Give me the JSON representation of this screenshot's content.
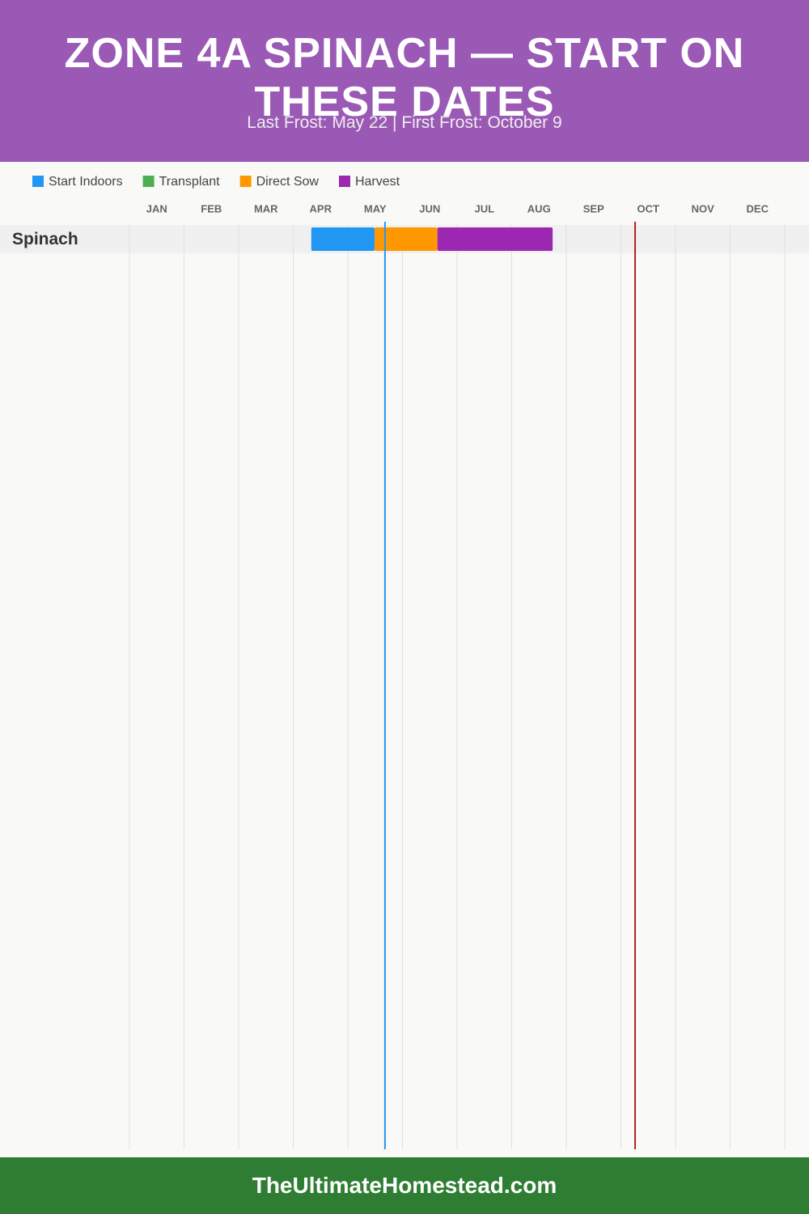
{
  "chart_data": {
    "type": "gantt",
    "title": "ZONE 4A SPINACH — START ON THESE DATES",
    "subtitle": "Last Frost: May 22 | First Frost: October 9",
    "footer": "TheUltimateHomestead.com",
    "categories": [
      "JAN",
      "FEB",
      "MAR",
      "APR",
      "MAY",
      "JUN",
      "JUL",
      "AUG",
      "SEP",
      "OCT",
      "NOV",
      "DEC"
    ],
    "xlim": [
      0,
      12
    ],
    "grid": true,
    "series": [
      {
        "name": "Start Indoors",
        "color": "#2196f3"
      },
      {
        "name": "Transplant",
        "color": "#4caf50"
      },
      {
        "name": "Direct Sow",
        "color": "#ff9800"
      },
      {
        "name": "Harvest",
        "color": "#9c27b0"
      }
    ],
    "tasks": [
      {
        "name": "Spinach",
        "segments": [
          {
            "series": 0,
            "start": 3.33,
            "end": 4.49
          },
          {
            "series": 2,
            "start": 4.49,
            "end": 5.64
          },
          {
            "series": 3,
            "start": 5.64,
            "end": 7.75
          }
        ]
      }
    ],
    "markers": [
      {
        "value": 4.68,
        "color": "#2196f3"
      },
      {
        "value": 9.26,
        "color": "#b22222"
      }
    ]
  }
}
